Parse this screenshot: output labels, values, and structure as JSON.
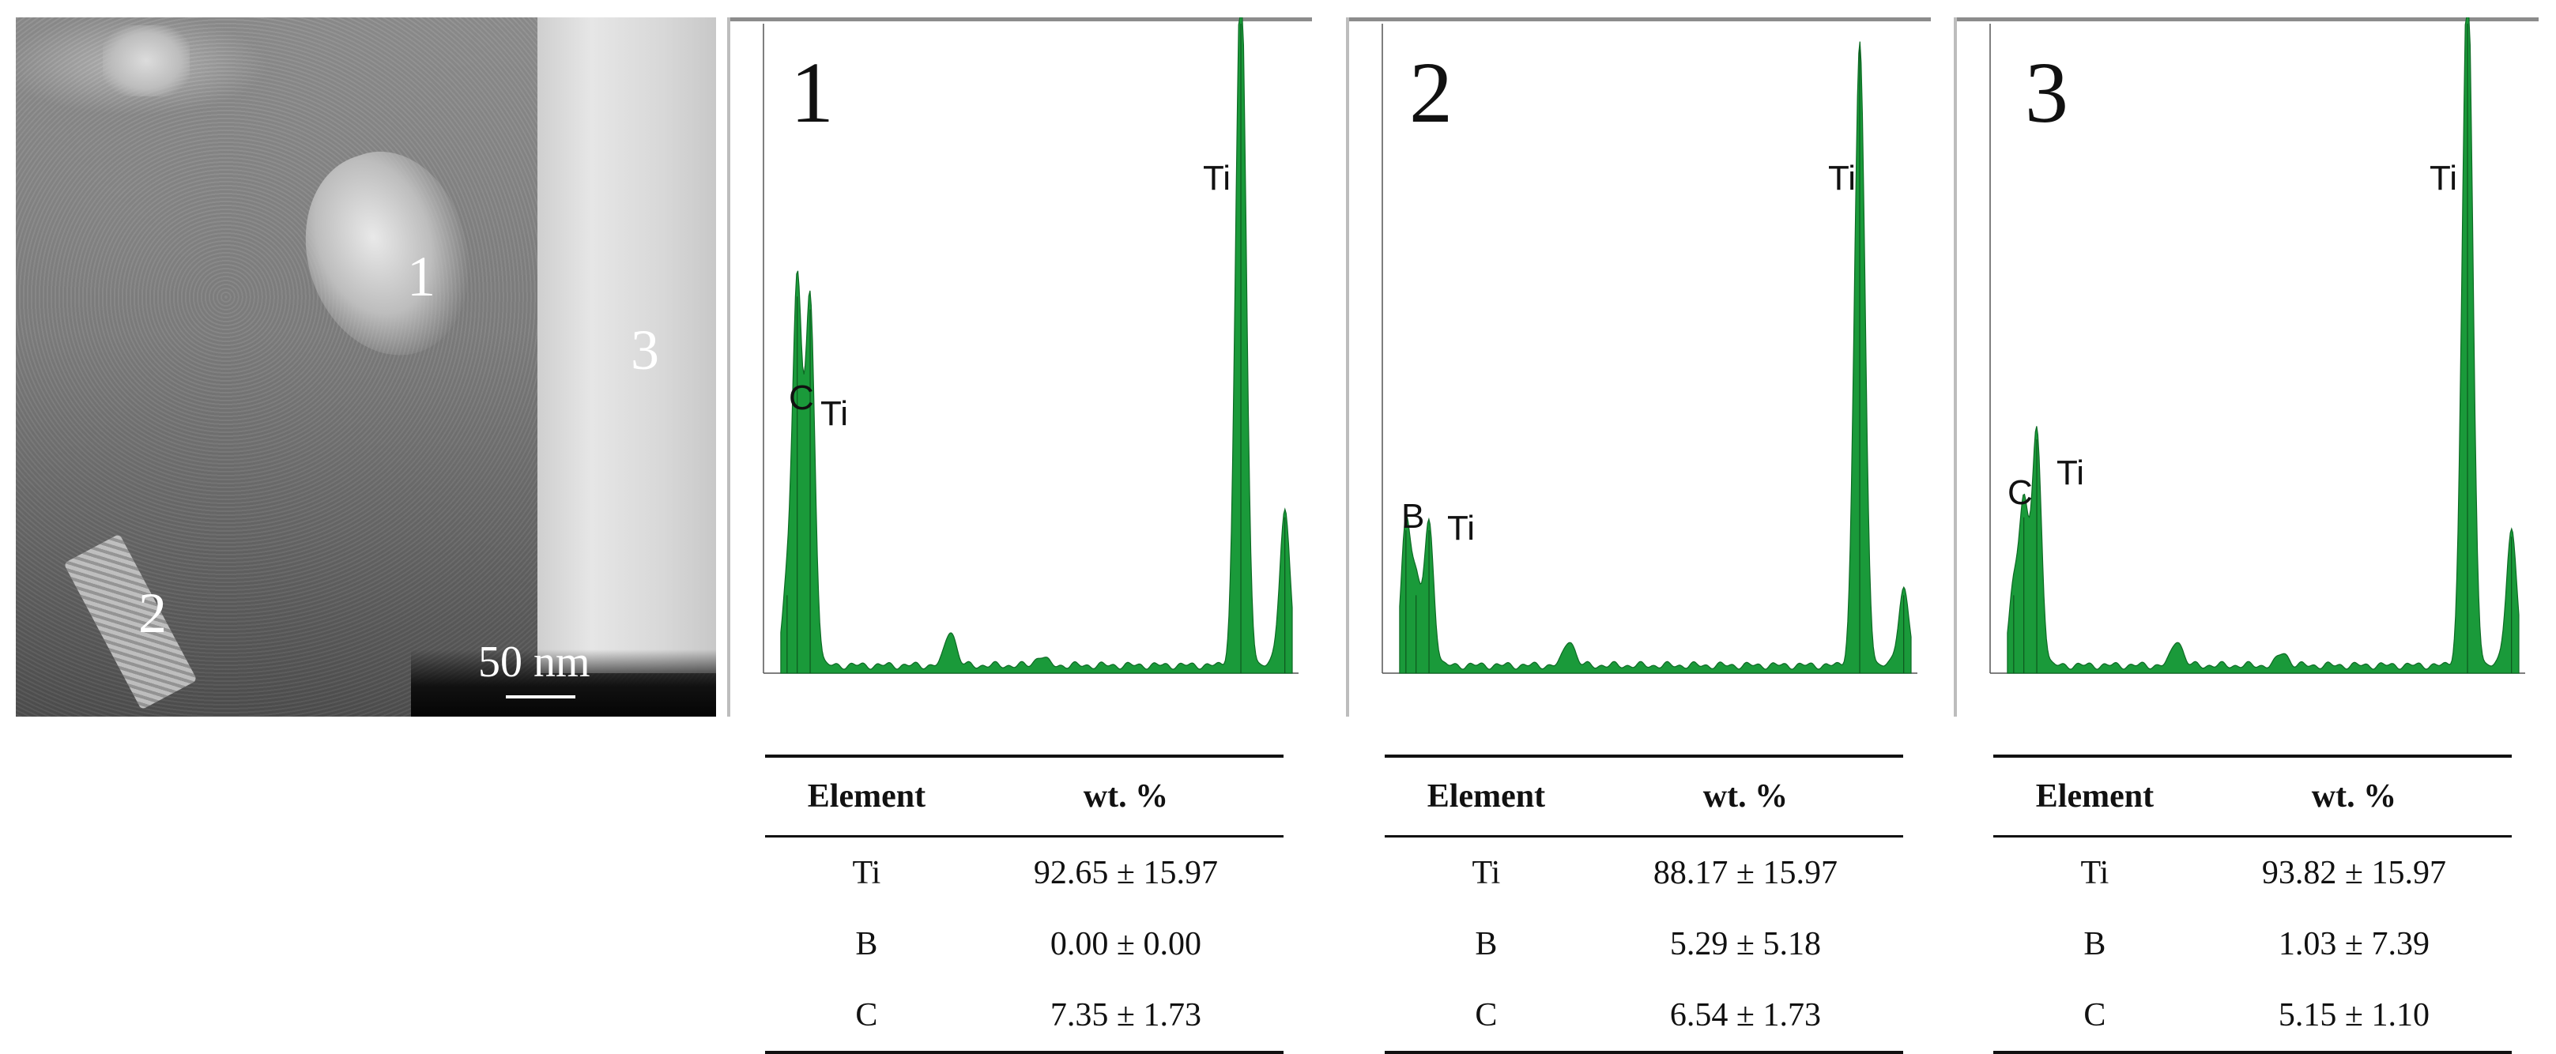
{
  "micrograph": {
    "labels": [
      "1",
      "2",
      "3"
    ],
    "scale_bar": "50 nm"
  },
  "chart_data": [
    {
      "type": "area",
      "panel_label": "1",
      "color": "#1a9a3a",
      "xlim": [
        0,
        5
      ],
      "peak_labels": [
        "Ti",
        "C",
        "Ti"
      ],
      "peaks": [
        {
          "element": "B",
          "x": 0.18,
          "height": 0.12
        },
        {
          "element": "C",
          "x": 0.277,
          "height": 0.58
        },
        {
          "element": "Ti",
          "x": 0.4,
          "height": 0.56
        },
        {
          "element": "Ti",
          "x": 4.51,
          "height": 1.08
        },
        {
          "element": "Ti",
          "x": 4.93,
          "height": 0.24
        },
        {
          "element": "minor",
          "x": 1.74,
          "height": 0.055
        },
        {
          "element": "minor",
          "x": 2.6,
          "height": 0.015
        }
      ]
    },
    {
      "type": "area",
      "panel_label": "2",
      "color": "#1a9a3a",
      "xlim": [
        0,
        5
      ],
      "peak_labels": [
        "Ti",
        "B",
        "Ti"
      ],
      "peaks": [
        {
          "element": "B",
          "x": 0.18,
          "height": 0.22
        },
        {
          "element": "C",
          "x": 0.277,
          "height": 0.12
        },
        {
          "element": "Ti",
          "x": 0.4,
          "height": 0.22
        },
        {
          "element": "Ti",
          "x": 4.51,
          "height": 0.96
        },
        {
          "element": "Ti",
          "x": 4.93,
          "height": 0.12
        },
        {
          "element": "minor",
          "x": 1.74,
          "height": 0.04
        }
      ]
    },
    {
      "type": "area",
      "panel_label": "3",
      "color": "#1a9a3a",
      "xlim": [
        0,
        5
      ],
      "peak_labels": [
        "Ti",
        "C",
        "Ti"
      ],
      "peaks": [
        {
          "element": "B",
          "x": 0.18,
          "height": 0.12
        },
        {
          "element": "C",
          "x": 0.277,
          "height": 0.24
        },
        {
          "element": "Ti",
          "x": 0.4,
          "height": 0.36
        },
        {
          "element": "Ti",
          "x": 4.51,
          "height": 1.08
        },
        {
          "element": "Ti",
          "x": 4.93,
          "height": 0.21
        },
        {
          "element": "minor",
          "x": 1.74,
          "height": 0.04
        },
        {
          "element": "minor",
          "x": 2.75,
          "height": 0.02
        }
      ]
    }
  ],
  "tables": [
    {
      "headers": [
        "Element",
        "wt. %"
      ],
      "rows": [
        [
          "Ti",
          "92.65 ± 15.97"
        ],
        [
          "B",
          "0.00 ± 0.00"
        ],
        [
          "C",
          "7.35 ± 1.73"
        ]
      ]
    },
    {
      "headers": [
        "Element",
        "wt. %"
      ],
      "rows": [
        [
          "Ti",
          "88.17 ± 15.97"
        ],
        [
          "B",
          "5.29 ± 5.18"
        ],
        [
          "C",
          "6.54 ± 1.73"
        ]
      ]
    },
    {
      "headers": [
        "Element",
        "wt. %"
      ],
      "rows": [
        [
          "Ti",
          "93.82 ± 15.97"
        ],
        [
          "B",
          "1.03 ± 7.39"
        ],
        [
          "C",
          "5.15 ± 1.10"
        ]
      ]
    }
  ]
}
